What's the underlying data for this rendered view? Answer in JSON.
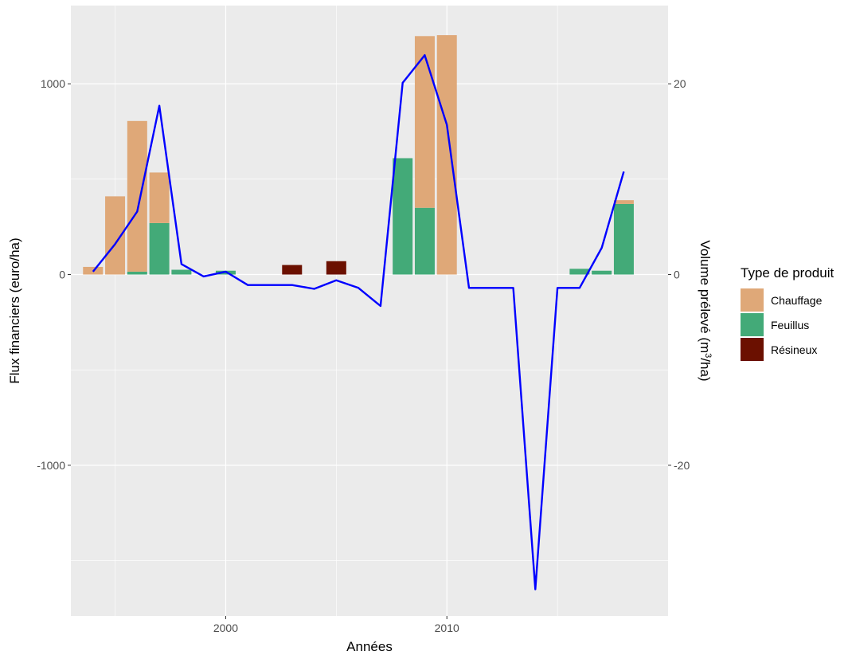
{
  "chart_data": {
    "type": "bar",
    "title": "",
    "xlabel": "Années",
    "ylabel": "Flux financiers (euro/ha)",
    "y2label_main": "Volume prélevé (m",
    "y2label_sup": "3",
    "y2label_end": "/ha)",
    "xlim": [
      1993,
      2020
    ],
    "ylim": [
      -1790,
      1410
    ],
    "y2lim": [
      -35.8,
      28.2
    ],
    "x_ticks": [
      2000,
      2010
    ],
    "x_ticks_minor": [
      1995,
      2005,
      2015
    ],
    "y_ticks": [
      -1000,
      0,
      1000
    ],
    "y_ticks_minor": [
      -1500,
      -500,
      500
    ],
    "y2_ticks": [
      -20,
      0,
      20
    ],
    "x_tick_labels": [
      "2000",
      "2010"
    ],
    "y_tick_labels": [
      "-1000",
      "0",
      "1000"
    ],
    "y2_tick_labels": [
      "-20",
      "0",
      "20"
    ],
    "grid": true,
    "legend": {
      "title": "Type de produit",
      "position": "right",
      "items": [
        {
          "label": "Chauffage",
          "color": "#dfa878"
        },
        {
          "label": "Feuillus",
          "color": "#43aa78"
        },
        {
          "label": "Résineux",
          "color": "#6b1000"
        }
      ]
    },
    "bar_series": [
      {
        "name": "Feuillus",
        "color": "#43aa78",
        "points": [
          [
            1996,
            15
          ],
          [
            1997,
            270
          ],
          [
            1998,
            25
          ],
          [
            2000,
            20
          ],
          [
            2008,
            610
          ],
          [
            2009,
            350
          ],
          [
            2016,
            30
          ],
          [
            2017,
            20
          ],
          [
            2018,
            370
          ]
        ]
      },
      {
        "name": "Chauffage",
        "color": "#dfa878",
        "points": [
          [
            1994,
            40
          ],
          [
            1995,
            410
          ],
          [
            1996,
            790
          ],
          [
            1997,
            265
          ],
          [
            2008,
            0
          ],
          [
            2009,
            900
          ],
          [
            2010,
            1255
          ],
          [
            2018,
            20
          ]
        ]
      },
      {
        "name": "Résineux",
        "color": "#6b1000",
        "points": [
          [
            2003,
            50
          ],
          [
            2005,
            70
          ]
        ]
      }
    ],
    "line_series": {
      "name": "",
      "color": "#0000ff",
      "axis": "secondary",
      "x": [
        1994,
        1995,
        1996,
        1997,
        1998,
        1999,
        2000,
        2001,
        2002,
        2003,
        2004,
        2005,
        2006,
        2007,
        2008,
        2009,
        2010,
        2011,
        2012,
        2013,
        2014,
        2015,
        2016,
        2017,
        2018
      ],
      "y": [
        0.3,
        3.2,
        6.6,
        17.7,
        1.1,
        -0.2,
        0.3,
        -1.1,
        -1.1,
        -1.1,
        -1.5,
        -0.6,
        -1.4,
        -3.3,
        20.1,
        23.0,
        15.7,
        -1.4,
        -1.4,
        -1.4,
        -33.0,
        -1.4,
        -1.4,
        2.8,
        10.8
      ]
    }
  }
}
